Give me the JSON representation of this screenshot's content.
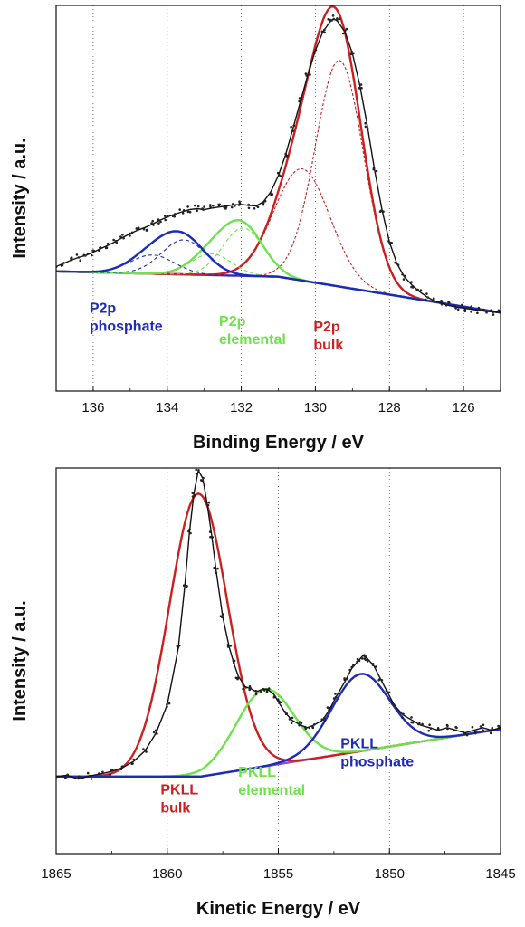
{
  "chart_data": [
    {
      "type": "line",
      "xlabel": "Binding Energy / eV",
      "ylabel": "Intensity / a.u.",
      "xlim": [
        137,
        125
      ],
      "x_reversed": true,
      "ylim": [
        -0.45,
        1.0
      ],
      "x_ticks": [
        136,
        134,
        132,
        130,
        128,
        126
      ],
      "grid": "vertical-dotted",
      "background": 0.0,
      "fit_series": [
        {
          "key": "p_bulk_total",
          "color": "#cc1f1f",
          "width": 2.4,
          "dash": "",
          "peaks": [
            [
              130.35,
              0.42,
              0.75
            ],
            [
              129.35,
              0.85,
              0.65
            ]
          ]
        },
        {
          "key": "p_bulk_a",
          "color": "#cc1f1f",
          "width": 1.1,
          "dash": "3,2",
          "peaks": [
            [
              130.35,
              0.42,
              0.75
            ]
          ]
        },
        {
          "key": "p_bulk_b",
          "color": "#cc1f1f",
          "width": 1.1,
          "dash": "3,2",
          "peaks": [
            [
              129.35,
              0.85,
              0.65
            ]
          ]
        },
        {
          "key": "p_elem_total",
          "color": "#6ee24a",
          "width": 2.4,
          "dash": "",
          "peaks": [
            [
              132.8,
              0.08,
              0.55
            ],
            [
              131.95,
              0.18,
              0.55
            ]
          ]
        },
        {
          "key": "p_elem_a",
          "color": "#6ee24a",
          "width": 1.1,
          "dash": "4,3",
          "peaks": [
            [
              132.8,
              0.08,
              0.55
            ]
          ]
        },
        {
          "key": "p_elem_b",
          "color": "#6ee24a",
          "width": 1.1,
          "dash": "4,3",
          "peaks": [
            [
              131.95,
              0.18,
              0.55
            ]
          ]
        },
        {
          "key": "p_phos_total",
          "color": "#1c2bb8",
          "width": 2.4,
          "dash": "",
          "peaks": [
            [
              134.4,
              0.07,
              0.6
            ],
            [
              133.55,
              0.13,
              0.6
            ]
          ]
        },
        {
          "key": "p_phos_a",
          "color": "#1c2bb8",
          "width": 1.1,
          "dash": "4,3",
          "peaks": [
            [
              134.4,
              0.07,
              0.6
            ]
          ]
        },
        {
          "key": "p_phos_b",
          "color": "#1c2bb8",
          "width": 1.1,
          "dash": "4,3",
          "peaks": [
            [
              133.55,
              0.13,
              0.6
            ]
          ]
        }
      ],
      "baseline": {
        "color": "#2a2ab0",
        "from": [
          137,
          0.0
        ],
        "mid": [
          131,
          -0.02
        ],
        "to": [
          125,
          -0.155
        ]
      },
      "envelope_color": "#111111",
      "points_color": "#222222",
      "points": [
        [
          137.0,
          0.018
        ],
        [
          136.8,
          0.03
        ],
        [
          136.6,
          0.042
        ],
        [
          136.4,
          0.052
        ],
        [
          136.2,
          0.06
        ],
        [
          136.0,
          0.072
        ],
        [
          135.8,
          0.085
        ],
        [
          135.6,
          0.098
        ],
        [
          135.4,
          0.112
        ],
        [
          135.2,
          0.128
        ],
        [
          135.0,
          0.142
        ],
        [
          134.8,
          0.155
        ],
        [
          134.6,
          0.165
        ],
        [
          134.4,
          0.178
        ],
        [
          134.2,
          0.192
        ],
        [
          134.0,
          0.205
        ],
        [
          133.8,
          0.215
        ],
        [
          133.6,
          0.224
        ],
        [
          133.4,
          0.232
        ],
        [
          133.2,
          0.236
        ],
        [
          133.0,
          0.232
        ],
        [
          132.8,
          0.238
        ],
        [
          132.6,
          0.242
        ],
        [
          132.4,
          0.246
        ],
        [
          132.2,
          0.25
        ],
        [
          132.0,
          0.252
        ],
        [
          131.8,
          0.248
        ],
        [
          131.6,
          0.246
        ],
        [
          131.4,
          0.262
        ],
        [
          131.2,
          0.3
        ],
        [
          131.0,
          0.36
        ],
        [
          130.8,
          0.44
        ],
        [
          130.6,
          0.54
        ],
        [
          130.4,
          0.64
        ],
        [
          130.2,
          0.74
        ],
        [
          130.0,
          0.83
        ],
        [
          129.8,
          0.9
        ],
        [
          129.6,
          0.94
        ],
        [
          129.5,
          0.95
        ],
        [
          129.4,
          0.94
        ],
        [
          129.2,
          0.9
        ],
        [
          129.0,
          0.82
        ],
        [
          128.8,
          0.7
        ],
        [
          128.6,
          0.55
        ],
        [
          128.4,
          0.38
        ],
        [
          128.2,
          0.23
        ],
        [
          128.0,
          0.11
        ],
        [
          127.8,
          0.03
        ],
        [
          127.6,
          -0.02
        ],
        [
          127.4,
          -0.05
        ],
        [
          127.2,
          -0.075
        ],
        [
          127.0,
          -0.095
        ],
        [
          126.8,
          -0.11
        ],
        [
          126.6,
          -0.12
        ],
        [
          126.4,
          -0.128
        ],
        [
          126.2,
          -0.134
        ],
        [
          126.0,
          -0.138
        ],
        [
          125.8,
          -0.142
        ],
        [
          125.6,
          -0.146
        ],
        [
          125.4,
          -0.15
        ],
        [
          125.2,
          -0.152
        ],
        [
          125.0,
          -0.155
        ]
      ],
      "annotations": [
        {
          "lines": [
            "P2p",
            "phosphate"
          ],
          "color": "#1c2bb8",
          "x": 136.1,
          "y": -0.155
        },
        {
          "lines": [
            "P2p",
            "elemental"
          ],
          "color": "#6ee24a",
          "x": 132.6,
          "y": -0.205
        },
        {
          "lines": [
            "P2p",
            "bulk"
          ],
          "color": "#cc1f1f",
          "x": 130.05,
          "y": -0.225
        }
      ]
    },
    {
      "type": "line",
      "xlabel": "Kinetic Energy / eV",
      "ylabel": "Intensity / a.u.",
      "xlim": [
        1865,
        1845
      ],
      "x_reversed": true,
      "ylim": [
        -0.3,
        1.2
      ],
      "x_ticks": [
        1865,
        1860,
        1855,
        1850,
        1845
      ],
      "grid": "vertical-dotted",
      "background": 0.0,
      "fit_series": [
        {
          "key": "pkll_bulk",
          "color": "#cc1f1f",
          "width": 2.4,
          "dash": "",
          "peaks": [
            [
              1858.6,
              1.1,
              1.3
            ]
          ]
        },
        {
          "key": "pkll_elem",
          "color": "#6ee24a",
          "width": 2.4,
          "dash": "",
          "peaks": [
            [
              1855.6,
              0.3,
              1.3
            ]
          ]
        },
        {
          "key": "pkll_phos",
          "color": "#1c2bb8",
          "width": 2.4,
          "dash": "",
          "peaks": [
            [
              1851.3,
              0.3,
              1.3
            ]
          ]
        }
      ],
      "baseline": {
        "color": "#8a4fc4",
        "from": [
          1865,
          0.0
        ],
        "mid": [
          1858.5,
          0.0
        ],
        "to": [
          1845,
          0.185
        ]
      },
      "envelope_color": "#111111",
      "points_color": "#222222",
      "points": [
        [
          1865.0,
          0.0
        ],
        [
          1864.5,
          0.005
        ],
        [
          1864.0,
          -0.01
        ],
        [
          1863.5,
          0.002
        ],
        [
          1863.0,
          0.01
        ],
        [
          1862.5,
          0.02
        ],
        [
          1862.0,
          0.035
        ],
        [
          1861.5,
          0.06
        ],
        [
          1861.0,
          0.1
        ],
        [
          1860.5,
          0.17
        ],
        [
          1860.0,
          0.28
        ],
        [
          1859.5,
          0.5
        ],
        [
          1859.2,
          0.75
        ],
        [
          1859.0,
          0.95
        ],
        [
          1858.8,
          1.1
        ],
        [
          1858.6,
          1.19
        ],
        [
          1858.4,
          1.16
        ],
        [
          1858.2,
          1.06
        ],
        [
          1858.0,
          0.94
        ],
        [
          1857.8,
          0.8
        ],
        [
          1857.5,
          0.62
        ],
        [
          1857.2,
          0.5
        ],
        [
          1857.0,
          0.44
        ],
        [
          1856.8,
          0.39
        ],
        [
          1856.5,
          0.35
        ],
        [
          1856.2,
          0.34
        ],
        [
          1856.0,
          0.33
        ],
        [
          1855.7,
          0.34
        ],
        [
          1855.5,
          0.34
        ],
        [
          1855.2,
          0.32
        ],
        [
          1855.0,
          0.29
        ],
        [
          1854.7,
          0.25
        ],
        [
          1854.4,
          0.22
        ],
        [
          1854.0,
          0.2
        ],
        [
          1853.7,
          0.19
        ],
        [
          1853.4,
          0.2
        ],
        [
          1853.0,
          0.22
        ],
        [
          1852.7,
          0.26
        ],
        [
          1852.4,
          0.31
        ],
        [
          1852.0,
          0.37
        ],
        [
          1851.7,
          0.42
        ],
        [
          1851.4,
          0.45
        ],
        [
          1851.2,
          0.47
        ],
        [
          1851.0,
          0.46
        ],
        [
          1850.7,
          0.43
        ],
        [
          1850.4,
          0.38
        ],
        [
          1850.1,
          0.33
        ],
        [
          1849.8,
          0.28
        ],
        [
          1849.4,
          0.24
        ],
        [
          1849.0,
          0.22
        ],
        [
          1848.6,
          0.2
        ],
        [
          1848.2,
          0.19
        ],
        [
          1847.8,
          0.18
        ],
        [
          1847.4,
          0.19
        ],
        [
          1847.0,
          0.18
        ],
        [
          1846.6,
          0.17
        ],
        [
          1846.2,
          0.18
        ],
        [
          1845.8,
          0.19
        ],
        [
          1845.4,
          0.18
        ],
        [
          1845.0,
          0.19
        ]
      ],
      "annotations": [
        {
          "lines": [
            "PKLL",
            "bulk"
          ],
          "color": "#cc1f1f",
          "x": 1860.3,
          "y": -0.07
        },
        {
          "lines": [
            "PKLL",
            "elemental"
          ],
          "color": "#6ee24a",
          "x": 1856.8,
          "y": 0.0
        },
        {
          "lines": [
            "PKLL",
            "phosphate"
          ],
          "color": "#1c2bb8",
          "x": 1852.2,
          "y": 0.11
        }
      ]
    }
  ]
}
